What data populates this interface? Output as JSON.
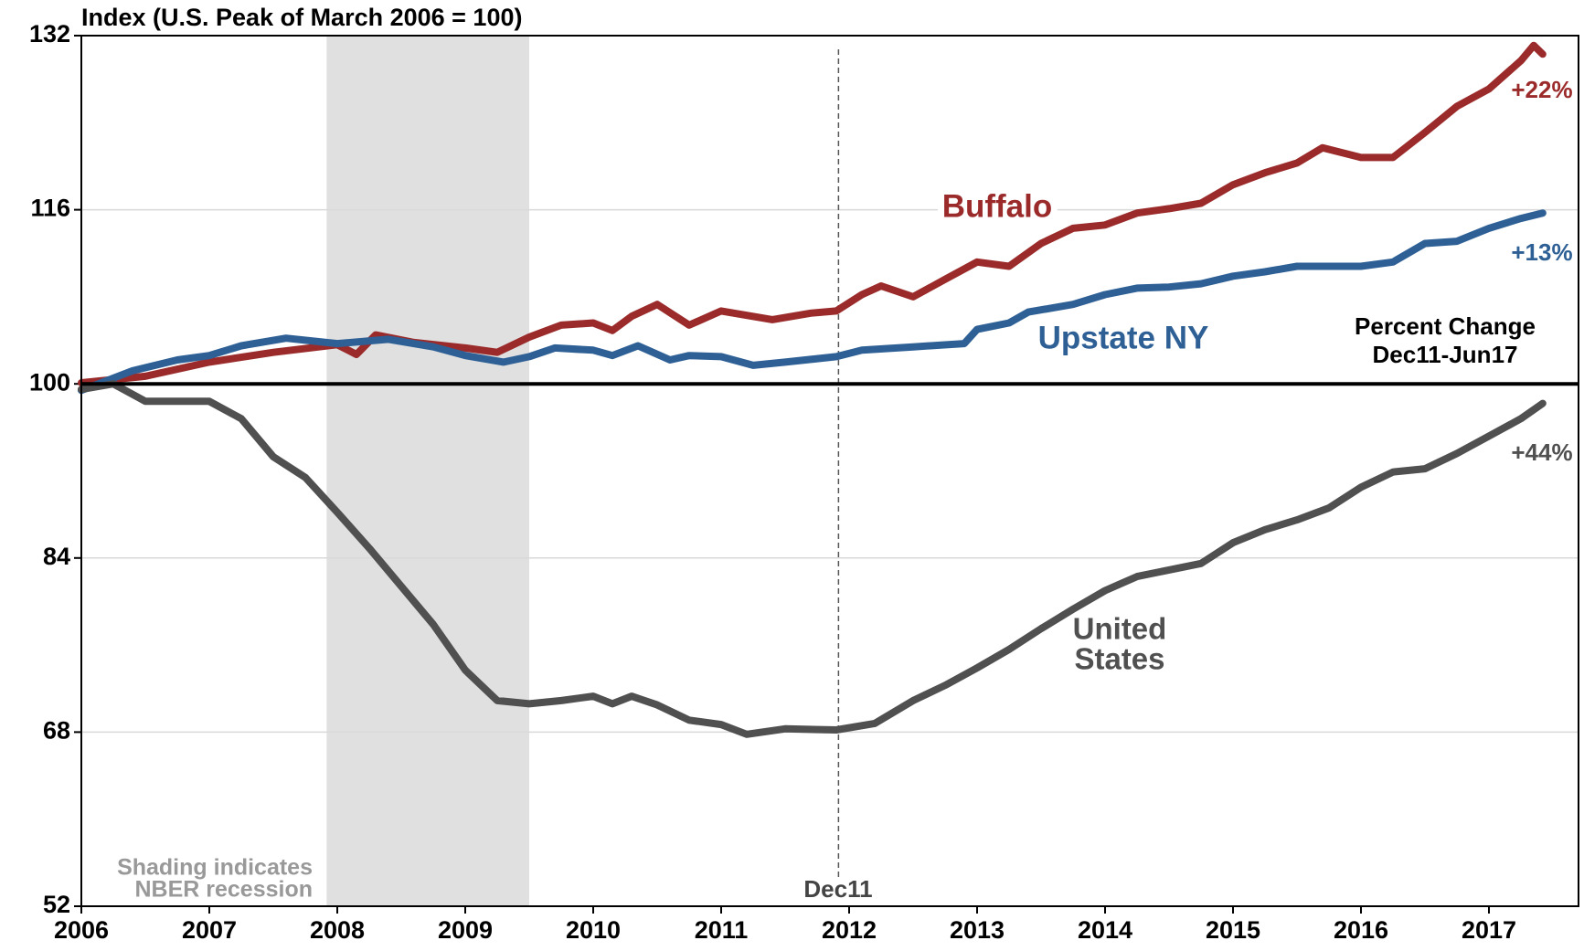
{
  "chart_data": {
    "type": "line",
    "title": "Index (U.S. Peak of March 2006 = 100)",
    "xlim": [
      2006,
      2017.7
    ],
    "xticks": [
      2006,
      2007,
      2008,
      2009,
      2010,
      2011,
      2012,
      2013,
      2014,
      2015,
      2016,
      2017
    ],
    "ylim": [
      52,
      132
    ],
    "yticks": [
      52,
      68,
      84,
      100,
      116,
      132
    ],
    "grid": true,
    "reference_line": 100,
    "recession": [
      2007.917,
      2009.5
    ],
    "marker_line": 2011.917,
    "annotations": [
      "Buffalo",
      "Upstate NY",
      "United",
      "States",
      "Percent Change",
      "Dec11-Jun17",
      "+22%",
      "+13%",
      "+44%",
      "Shading indicates",
      "NBER recession",
      "Dec11"
    ],
    "series": [
      {
        "name": "Buffalo",
        "color": "#9b2b2b",
        "x": [
          2006.0,
          2006.5,
          2007.0,
          2007.5,
          2008.0,
          2008.15,
          2008.3,
          2008.6,
          2009.0,
          2009.25,
          2009.5,
          2009.75,
          2010.0,
          2010.15,
          2010.3,
          2010.5,
          2010.75,
          2011.0,
          2011.4,
          2011.7,
          2011.9,
          2012.1,
          2012.25,
          2012.5,
          2012.75,
          2013.0,
          2013.25,
          2013.5,
          2013.75,
          2014.0,
          2014.25,
          2014.5,
          2014.75,
          2015.0,
          2015.25,
          2015.5,
          2015.7,
          2016.0,
          2016.25,
          2016.5,
          2016.75,
          2017.0,
          2017.25,
          2017.35,
          2017.42
        ],
        "values": [
          100.1,
          100.7,
          102.0,
          102.9,
          103.6,
          102.7,
          104.5,
          103.8,
          103.3,
          102.9,
          104.3,
          105.4,
          105.6,
          104.9,
          106.2,
          107.3,
          105.4,
          106.7,
          105.9,
          106.5,
          106.7,
          108.2,
          109.0,
          108.0,
          109.6,
          111.2,
          110.8,
          112.9,
          114.3,
          114.6,
          115.7,
          116.1,
          116.6,
          118.3,
          119.4,
          120.3,
          121.7,
          120.8,
          120.8,
          123.1,
          125.5,
          127.1,
          129.7,
          131.1,
          130.3
        ]
      },
      {
        "name": "Upstate NY",
        "color": "#2e6096",
        "x": [
          2006.0,
          2006.4,
          2006.75,
          2007.0,
          2007.25,
          2007.6,
          2008.0,
          2008.4,
          2008.75,
          2009.0,
          2009.3,
          2009.5,
          2009.7,
          2010.0,
          2010.15,
          2010.35,
          2010.6,
          2010.75,
          2011.0,
          2011.25,
          2011.5,
          2011.9,
          2012.1,
          2012.5,
          2012.9,
          2013.0,
          2013.25,
          2013.4,
          2013.75,
          2014.0,
          2014.25,
          2014.5,
          2014.75,
          2015.0,
          2015.25,
          2015.5,
          2015.75,
          2016.0,
          2016.25,
          2016.5,
          2016.75,
          2017.0,
          2017.25,
          2017.42
        ],
        "values": [
          99.4,
          101.2,
          102.2,
          102.6,
          103.5,
          104.2,
          103.7,
          104.1,
          103.4,
          102.6,
          102.0,
          102.5,
          103.3,
          103.1,
          102.6,
          103.5,
          102.2,
          102.6,
          102.5,
          101.7,
          102.0,
          102.5,
          103.1,
          103.4,
          103.7,
          105.0,
          105.6,
          106.6,
          107.3,
          108.2,
          108.8,
          108.9,
          109.2,
          109.9,
          110.3,
          110.8,
          110.8,
          110.8,
          111.2,
          112.9,
          113.1,
          114.3,
          115.2,
          115.7
        ]
      },
      {
        "name": "United States",
        "color": "#505050",
        "x": [
          2006.0,
          2006.25,
          2006.5,
          2007.0,
          2007.25,
          2007.5,
          2007.75,
          2008.0,
          2008.25,
          2008.5,
          2008.75,
          2009.0,
          2009.25,
          2009.5,
          2009.75,
          2010.0,
          2010.15,
          2010.3,
          2010.5,
          2010.75,
          2011.0,
          2011.2,
          2011.5,
          2011.9,
          2012.2,
          2012.5,
          2012.75,
          2013.0,
          2013.25,
          2013.5,
          2013.75,
          2014.0,
          2014.25,
          2014.5,
          2014.75,
          2015.0,
          2015.25,
          2015.5,
          2015.75,
          2016.0,
          2016.25,
          2016.5,
          2016.75,
          2017.0,
          2017.25,
          2017.42
        ],
        "values": [
          99.5,
          100.0,
          98.4,
          98.4,
          96.8,
          93.3,
          91.4,
          88.2,
          84.9,
          81.4,
          77.9,
          73.7,
          70.9,
          70.6,
          70.9,
          71.3,
          70.6,
          71.3,
          70.5,
          69.1,
          68.7,
          67.8,
          68.3,
          68.2,
          68.8,
          70.9,
          72.3,
          73.9,
          75.6,
          77.5,
          79.3,
          81.0,
          82.3,
          82.9,
          83.5,
          85.4,
          86.6,
          87.5,
          88.6,
          90.5,
          91.9,
          92.2,
          93.6,
          95.2,
          96.8,
          98.2
        ]
      }
    ]
  }
}
